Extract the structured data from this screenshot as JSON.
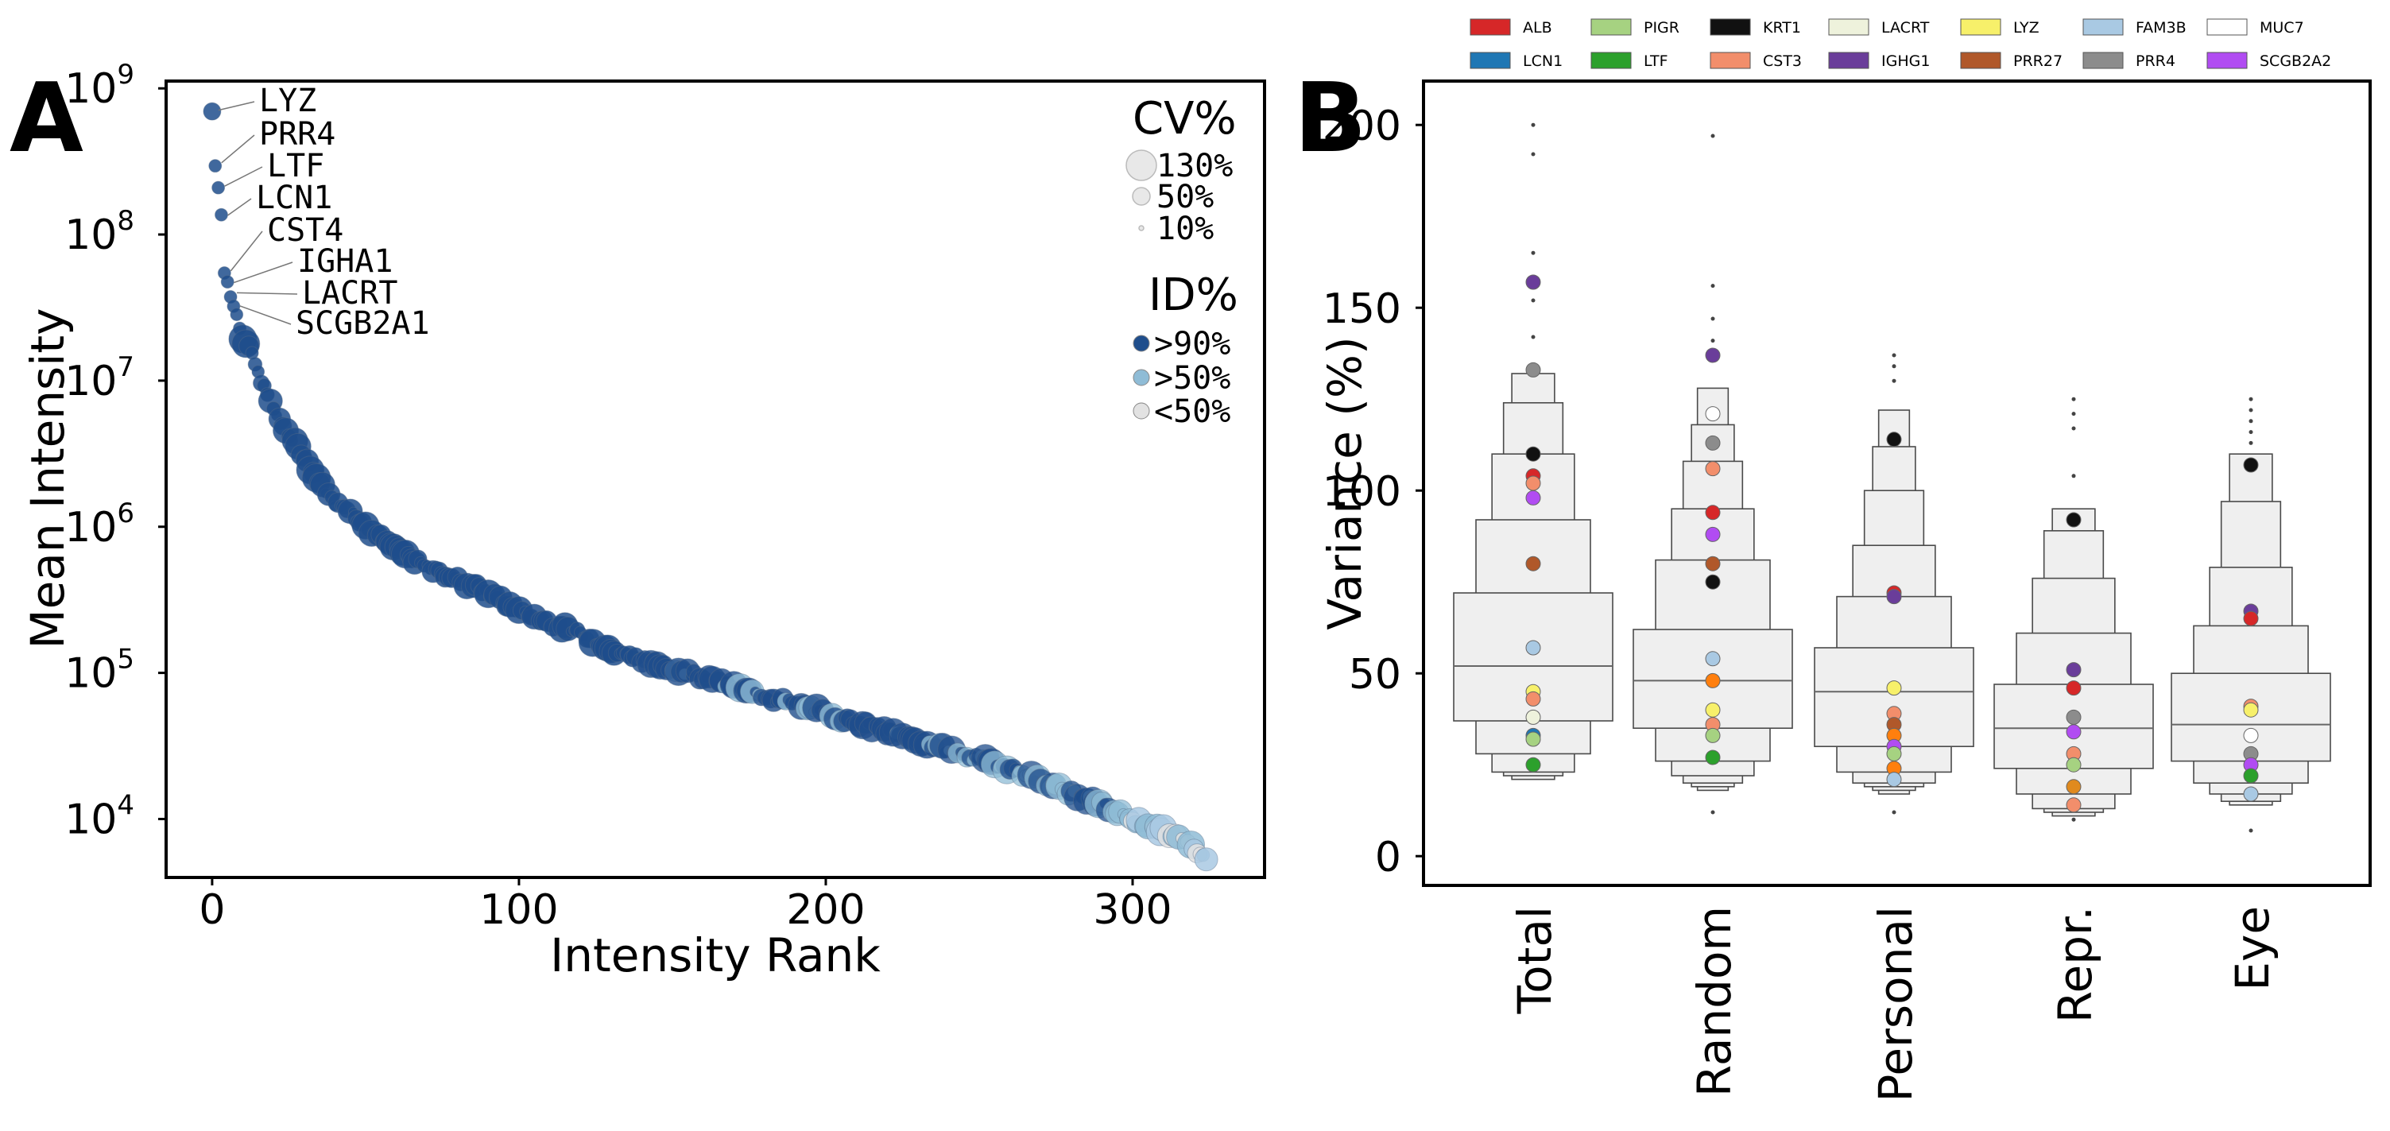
{
  "panel_a": {
    "label": "A",
    "chart_data": {
      "type": "scatter",
      "xlabel": "Intensity Rank",
      "ylabel": "Mean Intensity",
      "xlim": [
        -15,
        343
      ],
      "ylim_log10": [
        3.6,
        9.05
      ],
      "x_ticks": [
        0,
        100,
        200,
        300
      ],
      "y_ticks": [
        {
          "mantissa": "10",
          "exp": "4",
          "log": 4
        },
        {
          "mantissa": "10",
          "exp": "5",
          "log": 5
        },
        {
          "mantissa": "10",
          "exp": "6",
          "log": 6
        },
        {
          "mantissa": "10",
          "exp": "7",
          "log": 7
        },
        {
          "mantissa": "10",
          "exp": "8",
          "log": 8
        },
        {
          "mantissa": "10",
          "exp": "9",
          "log": 9
        }
      ],
      "annotations": [
        {
          "text": "LYZ",
          "rank": 0,
          "log": 8.84
        },
        {
          "text": "PRR4",
          "rank": 1,
          "log": 8.48
        },
        {
          "text": "LTF",
          "rank": 2,
          "log": 8.32
        },
        {
          "text": "LCN1",
          "rank": 3,
          "log": 8.12
        },
        {
          "text": "CST4",
          "rank": 4,
          "log": 7.74
        },
        {
          "text": "IGHA1",
          "rank": 5,
          "log": 7.66
        },
        {
          "text": "LACRT",
          "rank": 6,
          "log": 7.59
        },
        {
          "text": "SCGB2A1",
          "rank": 7,
          "log": 7.5
        }
      ],
      "curve": [
        [
          0,
          8.84
        ],
        [
          1,
          8.48
        ],
        [
          2,
          8.32
        ],
        [
          3,
          8.12
        ],
        [
          4,
          7.74
        ],
        [
          6,
          7.59
        ],
        [
          8,
          7.45
        ],
        [
          10,
          7.3
        ],
        [
          12,
          7.23
        ],
        [
          15,
          7.05
        ],
        [
          18,
          6.9
        ],
        [
          22,
          6.72
        ],
        [
          26,
          6.6
        ],
        [
          30,
          6.48
        ],
        [
          35,
          6.3
        ],
        [
          40,
          6.16
        ],
        [
          45,
          6.12
        ],
        [
          50,
          6.0
        ],
        [
          55,
          5.93
        ],
        [
          60,
          5.85
        ],
        [
          70,
          5.72
        ],
        [
          80,
          5.64
        ],
        [
          90,
          5.55
        ],
        [
          100,
          5.42
        ],
        [
          110,
          5.34
        ],
        [
          120,
          5.27
        ],
        [
          130,
          5.15
        ],
        [
          140,
          5.09
        ],
        [
          150,
          5.03
        ],
        [
          160,
          4.97
        ],
        [
          170,
          4.9
        ],
        [
          180,
          4.84
        ],
        [
          190,
          4.79
        ],
        [
          200,
          4.72
        ],
        [
          210,
          4.66
        ],
        [
          220,
          4.6
        ],
        [
          230,
          4.53
        ],
        [
          240,
          4.47
        ],
        [
          250,
          4.41
        ],
        [
          260,
          4.35
        ],
        [
          270,
          4.26
        ],
        [
          280,
          4.18
        ],
        [
          290,
          4.1
        ],
        [
          300,
          3.99
        ],
        [
          305,
          3.96
        ],
        [
          310,
          3.92
        ],
        [
          315,
          3.87
        ],
        [
          320,
          3.8
        ],
        [
          324,
          3.72
        ]
      ],
      "legend": {
        "cv_title": "CV%",
        "cv_entries": [
          {
            "label": "130%",
            "cv": 130
          },
          {
            "label": "50%",
            "cv": 50
          },
          {
            "label": "10%",
            "cv": 10
          }
        ],
        "id_title": "ID%",
        "id_entries": [
          {
            "label": ">90%",
            "color": "#1f4e8c"
          },
          {
            "label": ">50%",
            "color": "#8fbcd6"
          },
          {
            "label": "<50%",
            "color": "#e2e2e2"
          }
        ]
      }
    }
  },
  "panel_b": {
    "label": "B",
    "chart_data": {
      "type": "boxen",
      "ylabel": "Variance (%)",
      "ylim": [
        -8,
        212
      ],
      "y_ticks": [
        0,
        50,
        100,
        150,
        200
      ],
      "categories": [
        "Total",
        "Random",
        "Personal",
        "Repr.",
        "Eye"
      ],
      "boxes": [
        {
          "median": 52,
          "levels": [
            [
              37,
              72
            ],
            [
              28,
              92
            ],
            [
              23,
              110
            ],
            [
              22,
              124
            ],
            [
              21,
              132
            ]
          ],
          "outliers": [
            200,
            192,
            165,
            152,
            142
          ]
        },
        {
          "median": 48,
          "levels": [
            [
              35,
              62
            ],
            [
              26,
              81
            ],
            [
              22,
              95
            ],
            [
              20,
              108
            ],
            [
              19,
              118
            ],
            [
              18,
              128
            ]
          ],
          "outliers": [
            197,
            156,
            147,
            141,
            12
          ]
        },
        {
          "median": 45,
          "levels": [
            [
              30,
              57
            ],
            [
              23,
              71
            ],
            [
              20,
              85
            ],
            [
              19,
              100
            ],
            [
              18,
              112
            ],
            [
              17,
              122
            ]
          ],
          "outliers": [
            137,
            134,
            130,
            12
          ]
        },
        {
          "median": 35,
          "levels": [
            [
              24,
              47
            ],
            [
              17,
              61
            ],
            [
              13,
              76
            ],
            [
              12,
              89
            ],
            [
              11,
              95
            ]
          ],
          "outliers": [
            125,
            121,
            117,
            104,
            10
          ]
        },
        {
          "median": 36,
          "levels": [
            [
              26,
              50
            ],
            [
              20,
              63
            ],
            [
              17,
              79
            ],
            [
              15,
              97
            ],
            [
              14,
              110
            ]
          ],
          "outliers": [
            125,
            122,
            119,
            116,
            113,
            7
          ]
        }
      ],
      "legend": [
        {
          "label": "ALB",
          "color": "#d62728"
        },
        {
          "label": "LCN1",
          "color": "#1f77b4"
        },
        {
          "label": "PIGR",
          "color": "#a6d281"
        },
        {
          "label": "LTF",
          "color": "#2ca02c"
        },
        {
          "label": "KRT1",
          "color": "#111111"
        },
        {
          "label": "CST3",
          "color": "#f28e6b"
        },
        {
          "label": "LACRT",
          "color": "#eef2dc"
        },
        {
          "label": "IGHG1",
          "color": "#6a3d9a"
        },
        {
          "label": "LYZ",
          "color": "#f7f06a"
        },
        {
          "label": "PRR27",
          "color": "#b0582a"
        },
        {
          "label": "FAM3B",
          "color": "#a9c9e3"
        },
        {
          "label": "PRR4",
          "color": "#8c8c8c"
        },
        {
          "label": "MUC7",
          "color": "#ffffff"
        },
        {
          "label": "SCGB2A2",
          "color": "#b14cf2"
        }
      ],
      "points": [
        [
          {
            "v": 157,
            "c": "#6a3d9a"
          },
          {
            "v": 133,
            "c": "#8c8c8c"
          },
          {
            "v": 110,
            "c": "#111111"
          },
          {
            "v": 104,
            "c": "#d62728"
          },
          {
            "v": 102,
            "c": "#f28e6b"
          },
          {
            "v": 98,
            "c": "#b14cf2"
          },
          {
            "v": 80,
            "c": "#b0582a"
          },
          {
            "v": 57,
            "c": "#a9c9e3"
          },
          {
            "v": 45,
            "c": "#f7f06a"
          },
          {
            "v": 43,
            "c": "#f28e6b"
          },
          {
            "v": 38,
            "c": "#eef2dc"
          },
          {
            "v": 33,
            "c": "#1f77b4"
          },
          {
            "v": 32,
            "c": "#a6d281"
          },
          {
            "v": 25,
            "c": "#2ca02c"
          }
        ],
        [
          {
            "v": 137,
            "c": "#6a3d9a"
          },
          {
            "v": 121,
            "c": "#ffffff"
          },
          {
            "v": 113,
            "c": "#8c8c8c"
          },
          {
            "v": 106,
            "c": "#f28e6b"
          },
          {
            "v": 94,
            "c": "#d62728"
          },
          {
            "v": 88,
            "c": "#b14cf2"
          },
          {
            "v": 80,
            "c": "#b0582a"
          },
          {
            "v": 75,
            "c": "#111111"
          },
          {
            "v": 54,
            "c": "#a9c9e3"
          },
          {
            "v": 48,
            "c": "#ff7f0e"
          },
          {
            "v": 40,
            "c": "#f7f06a"
          },
          {
            "v": 36,
            "c": "#f28e6b"
          },
          {
            "v": 33,
            "c": "#a6d281"
          },
          {
            "v": 27,
            "c": "#2ca02c"
          }
        ],
        [
          {
            "v": 114,
            "c": "#111111"
          },
          {
            "v": 72,
            "c": "#d62728"
          },
          {
            "v": 71,
            "c": "#6a3d9a"
          },
          {
            "v": 46,
            "c": "#f7f06a"
          },
          {
            "v": 39,
            "c": "#f28e6b"
          },
          {
            "v": 36,
            "c": "#b0582a"
          },
          {
            "v": 33,
            "c": "#ff7f0e"
          },
          {
            "v": 30,
            "c": "#b14cf2"
          },
          {
            "v": 28,
            "c": "#a6d281"
          },
          {
            "v": 24,
            "c": "#ff7f0e"
          },
          {
            "v": 21,
            "c": "#a9c9e3"
          }
        ],
        [
          {
            "v": 92,
            "c": "#111111"
          },
          {
            "v": 51,
            "c": "#6a3d9a"
          },
          {
            "v": 46,
            "c": "#d62728"
          },
          {
            "v": 38,
            "c": "#8c8c8c"
          },
          {
            "v": 34,
            "c": "#b14cf2"
          },
          {
            "v": 28,
            "c": "#f28e6b"
          },
          {
            "v": 25,
            "c": "#a6d281"
          },
          {
            "v": 19,
            "c": "#e08a1e"
          },
          {
            "v": 14,
            "c": "#f28e6b"
          }
        ],
        [
          {
            "v": 107,
            "c": "#111111"
          },
          {
            "v": 67,
            "c": "#6a3d9a"
          },
          {
            "v": 65,
            "c": "#d62728"
          },
          {
            "v": 41,
            "c": "#f28e6b"
          },
          {
            "v": 40,
            "c": "#f7f06a"
          },
          {
            "v": 33,
            "c": "#ffffff"
          },
          {
            "v": 28,
            "c": "#8c8c8c"
          },
          {
            "v": 25,
            "c": "#b14cf2"
          },
          {
            "v": 22,
            "c": "#2ca02c"
          },
          {
            "v": 17,
            "c": "#a9c9e3"
          }
        ]
      ]
    }
  }
}
